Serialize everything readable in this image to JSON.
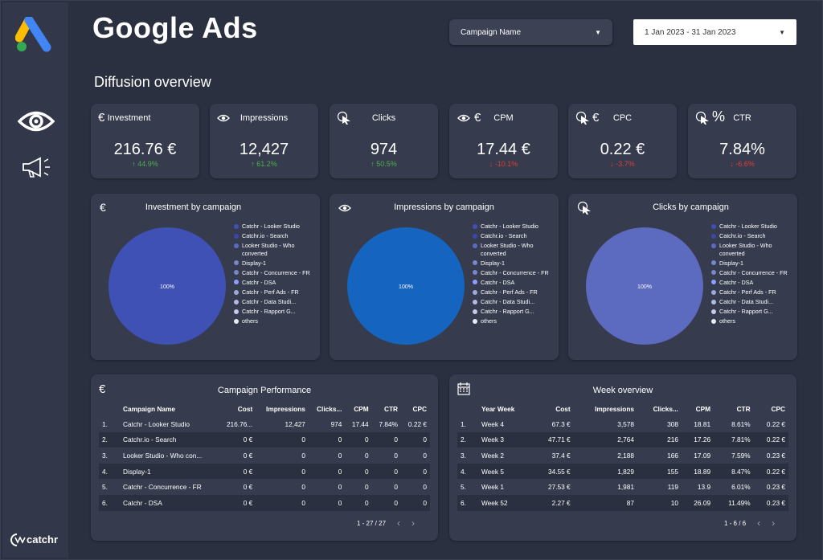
{
  "header": {
    "title": "Google Ads",
    "subtitle": "Diffusion overview",
    "campaign_filter": "Campaign Name",
    "date_range": "1 Jan 2023 - 31 Jan 2023"
  },
  "sidebar": {
    "items": [
      "eye-icon",
      "megaphone-icon"
    ],
    "brand": "catchr"
  },
  "kpis": [
    {
      "label": "Investment",
      "value": "216.76 €",
      "delta": "↑ 44.9%",
      "trend": "up"
    },
    {
      "label": "Impressions",
      "value": "12,427",
      "delta": "↑ 61.2%",
      "trend": "up"
    },
    {
      "label": "Clicks",
      "value": "974",
      "delta": "↑ 50.5%",
      "trend": "up"
    },
    {
      "label": "CPM",
      "value": "17.44 €",
      "delta": "↓ -10.1%",
      "trend": "down"
    },
    {
      "label": "CPC",
      "value": "0.22 €",
      "delta": "↓ -3.7%",
      "trend": "down"
    },
    {
      "label": "CTR",
      "value": "7.84%",
      "delta": "↓ -6.6%",
      "trend": "down"
    }
  ],
  "pies": [
    {
      "title": "Investment by campaign",
      "center_label": "100%",
      "color": "#3f51b5"
    },
    {
      "title": "Impressions by campaign",
      "center_label": "100%",
      "color": "#1565c0"
    },
    {
      "title": "Clicks by campaign",
      "center_label": "100%",
      "color": "#5c6bc0"
    }
  ],
  "legend": [
    {
      "label": "Catchr - Looker Studio",
      "color": "#3f51b5"
    },
    {
      "label": "Catchr.io - Search",
      "color": "#3949ab"
    },
    {
      "label": "Looker Studio - Who converted",
      "color": "#5c6bc0"
    },
    {
      "label": "Display-1",
      "color": "#7986cb"
    },
    {
      "label": "Catchr - Concurrence - FR",
      "color": "#7986cb"
    },
    {
      "label": "Catchr - DSA",
      "color": "#8c9eff"
    },
    {
      "label": "Catchr - Perf Ads - FR",
      "color": "#9fa8da"
    },
    {
      "label": "Catchr - Data Studi...",
      "color": "#b0bbe6"
    },
    {
      "label": "Catchr - Rapport G...",
      "color": "#c5cae9"
    },
    {
      "label": "others",
      "color": "#e8eaf6"
    }
  ],
  "campaign_table": {
    "title": "Campaign Performance",
    "columns": [
      "Campaign Name",
      "Cost",
      "Impressions",
      "Clicks...",
      "CPM",
      "CTR",
      "CPC"
    ],
    "rows": [
      [
        "1.",
        "Catchr - Looker Studio",
        "216.76...",
        "12,427",
        "974",
        "17.44",
        "7.84%",
        "0.22 €"
      ],
      [
        "2.",
        "Catchr.io - Search",
        "0 €",
        "0",
        "0",
        "0",
        "0",
        "0"
      ],
      [
        "3.",
        "Looker Studio - Who con...",
        "0 €",
        "0",
        "0",
        "0",
        "0",
        "0"
      ],
      [
        "4.",
        "Display-1",
        "0 €",
        "0",
        "0",
        "0",
        "0",
        "0"
      ],
      [
        "5.",
        "Catchr - Concurrence - FR",
        "0 €",
        "0",
        "0",
        "0",
        "0",
        "0"
      ],
      [
        "6.",
        "Catchr - DSA",
        "0 €",
        "0",
        "0",
        "0",
        "0",
        "0"
      ]
    ],
    "pagination": "1 - 27 / 27"
  },
  "week_table": {
    "title": "Week overview",
    "columns": [
      "Year Week",
      "Cost",
      "Impressions",
      "Clicks...",
      "CPM",
      "CTR",
      "CPC"
    ],
    "rows": [
      [
        "1.",
        "Week 4",
        "67.3 €",
        "3,578",
        "308",
        "18.81",
        "8.61%",
        "0.22 €"
      ],
      [
        "2.",
        "Week 3",
        "47.71 €",
        "2,764",
        "216",
        "17.26",
        "7.81%",
        "0.22 €"
      ],
      [
        "3.",
        "Week 2",
        "37.4 €",
        "2,188",
        "166",
        "17.09",
        "7.59%",
        "0.23 €"
      ],
      [
        "4.",
        "Week 5",
        "34.55 €",
        "1,829",
        "155",
        "18.89",
        "8.47%",
        "0.22 €"
      ],
      [
        "5.",
        "Week 1",
        "27.53 €",
        "1,981",
        "119",
        "13.9",
        "6.01%",
        "0.23 €"
      ],
      [
        "6.",
        "Week 52",
        "2.27 €",
        "87",
        "10",
        "26.09",
        "11.49%",
        "0.23 €"
      ]
    ],
    "pagination": "1 - 6 / 6"
  }
}
